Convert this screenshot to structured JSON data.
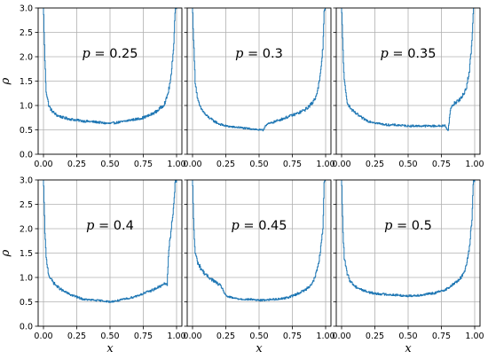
{
  "chart_data": [
    {
      "type": "line",
      "row": 0,
      "col": 0,
      "annotation": {
        "var": "p",
        "eq": " = ",
        "value": "0.25"
      },
      "xlabel": "",
      "ylabel": "ρ",
      "xlim": [
        -0.04,
        1.04
      ],
      "ylim": [
        0,
        3
      ],
      "xticks": [
        "0.00",
        "0.25",
        "0.50",
        "0.75",
        "1.00"
      ],
      "yticks": [
        "0.0",
        "0.5",
        "1.0",
        "1.5",
        "2.0",
        "2.5",
        "3.0"
      ],
      "x": [
        0.0,
        0.01,
        0.02,
        0.04,
        0.06,
        0.08,
        0.1,
        0.15,
        0.2,
        0.25,
        0.3,
        0.35,
        0.4,
        0.45,
        0.5,
        0.55,
        0.6,
        0.65,
        0.7,
        0.75,
        0.8,
        0.85,
        0.9,
        0.92,
        0.94,
        0.96,
        0.98,
        0.99,
        1.0
      ],
      "y": [
        3.0,
        2.0,
        1.3,
        1.0,
        0.9,
        0.85,
        0.8,
        0.75,
        0.72,
        0.7,
        0.68,
        0.67,
        0.66,
        0.64,
        0.63,
        0.65,
        0.67,
        0.7,
        0.72,
        0.75,
        0.8,
        0.88,
        1.0,
        1.1,
        1.3,
        1.6,
        2.3,
        3.0,
        3.0
      ]
    },
    {
      "type": "line",
      "row": 0,
      "col": 1,
      "annotation": {
        "var": "p",
        "eq": " = ",
        "value": "0.3"
      },
      "xlabel": "",
      "ylabel": "",
      "xlim": [
        -0.04,
        1.04
      ],
      "ylim": [
        0,
        3
      ],
      "xticks": [
        "0.00",
        "0.25",
        "0.50",
        "0.75",
        "1.00"
      ],
      "yticks": [],
      "x": [
        0.0,
        0.01,
        0.02,
        0.04,
        0.06,
        0.08,
        0.1,
        0.15,
        0.2,
        0.25,
        0.3,
        0.35,
        0.4,
        0.45,
        0.5,
        0.53,
        0.55,
        0.6,
        0.65,
        0.7,
        0.75,
        0.8,
        0.85,
        0.9,
        0.92,
        0.94,
        0.96,
        0.98,
        0.99,
        1.0
      ],
      "y": [
        3.0,
        2.2,
        1.5,
        1.1,
        0.95,
        0.88,
        0.8,
        0.7,
        0.62,
        0.58,
        0.56,
        0.55,
        0.53,
        0.52,
        0.5,
        0.49,
        0.6,
        0.65,
        0.7,
        0.75,
        0.8,
        0.85,
        0.92,
        1.05,
        1.15,
        1.3,
        1.6,
        2.2,
        3.0,
        3.0
      ]
    },
    {
      "type": "line",
      "row": 0,
      "col": 2,
      "annotation": {
        "var": "p",
        "eq": " = ",
        "value": "0.35"
      },
      "xlabel": "",
      "ylabel": "",
      "xlim": [
        -0.04,
        1.04
      ],
      "ylim": [
        0,
        3
      ],
      "xticks": [
        "0.00",
        "0.25",
        "0.50",
        "0.75",
        "1.00"
      ],
      "yticks": [],
      "x": [
        0.0,
        0.01,
        0.02,
        0.04,
        0.06,
        0.08,
        0.1,
        0.15,
        0.2,
        0.25,
        0.3,
        0.35,
        0.4,
        0.45,
        0.5,
        0.55,
        0.6,
        0.65,
        0.7,
        0.75,
        0.78,
        0.8,
        0.82,
        0.85,
        0.9,
        0.92,
        0.94,
        0.96,
        0.98,
        0.99,
        1.0
      ],
      "y": [
        3.0,
        2.2,
        1.5,
        1.1,
        0.97,
        0.9,
        0.85,
        0.75,
        0.68,
        0.65,
        0.62,
        0.6,
        0.6,
        0.59,
        0.58,
        0.58,
        0.58,
        0.58,
        0.58,
        0.58,
        0.59,
        0.47,
        0.95,
        1.05,
        1.15,
        1.25,
        1.4,
        1.7,
        2.3,
        3.0,
        3.0
      ]
    },
    {
      "type": "line",
      "row": 1,
      "col": 0,
      "annotation": {
        "var": "p",
        "eq": " = ",
        "value": "0.4"
      },
      "xlabel": "x",
      "ylabel": "ρ",
      "xlim": [
        -0.04,
        1.04
      ],
      "ylim": [
        0,
        3
      ],
      "xticks": [
        "0.00",
        "0.25",
        "0.50",
        "0.75",
        "1.00"
      ],
      "yticks": [
        "0.0",
        "0.5",
        "1.0",
        "1.5",
        "2.0",
        "2.5",
        "3.0"
      ],
      "x": [
        0.0,
        0.01,
        0.02,
        0.04,
        0.06,
        0.08,
        0.1,
        0.15,
        0.2,
        0.25,
        0.3,
        0.35,
        0.4,
        0.45,
        0.5,
        0.55,
        0.6,
        0.65,
        0.7,
        0.75,
        0.8,
        0.85,
        0.9,
        0.92,
        0.93,
        0.94,
        0.96,
        0.98,
        0.99,
        1.0
      ],
      "y": [
        3.0,
        2.0,
        1.4,
        1.05,
        0.95,
        0.88,
        0.82,
        0.72,
        0.65,
        0.6,
        0.55,
        0.54,
        0.53,
        0.52,
        0.5,
        0.52,
        0.55,
        0.58,
        0.62,
        0.67,
        0.72,
        0.78,
        0.85,
        0.88,
        0.85,
        1.5,
        2.0,
        2.5,
        3.0,
        3.0
      ]
    },
    {
      "type": "line",
      "row": 1,
      "col": 1,
      "annotation": {
        "var": "p",
        "eq": " = ",
        "value": "0.45"
      },
      "xlabel": "x",
      "ylabel": "",
      "xlim": [
        -0.04,
        1.04
      ],
      "ylim": [
        0,
        3
      ],
      "xticks": [
        "0.00",
        "0.25",
        "0.50",
        "0.75",
        "1.00"
      ],
      "yticks": [],
      "x": [
        0.0,
        0.01,
        0.02,
        0.04,
        0.06,
        0.08,
        0.1,
        0.15,
        0.2,
        0.22,
        0.25,
        0.3,
        0.35,
        0.4,
        0.45,
        0.5,
        0.55,
        0.6,
        0.65,
        0.7,
        0.75,
        0.8,
        0.85,
        0.9,
        0.92,
        0.94,
        0.96,
        0.98,
        0.99,
        1.0
      ],
      "y": [
        3.0,
        2.0,
        1.5,
        1.3,
        1.2,
        1.12,
        1.05,
        0.95,
        0.85,
        0.8,
        0.62,
        0.58,
        0.56,
        0.55,
        0.55,
        0.53,
        0.54,
        0.55,
        0.56,
        0.58,
        0.62,
        0.68,
        0.75,
        0.88,
        1.0,
        1.2,
        1.5,
        2.0,
        3.0,
        3.0
      ]
    },
    {
      "type": "line",
      "row": 1,
      "col": 2,
      "annotation": {
        "var": "p",
        "eq": " = ",
        "value": "0.5"
      },
      "xlabel": "x",
      "ylabel": "",
      "xlim": [
        -0.04,
        1.04
      ],
      "ylim": [
        0,
        3
      ],
      "xticks": [
        "0.00",
        "0.25",
        "0.50",
        "0.75",
        "1.00"
      ],
      "yticks": [],
      "x": [
        0.0,
        0.01,
        0.02,
        0.04,
        0.06,
        0.08,
        0.1,
        0.15,
        0.2,
        0.25,
        0.3,
        0.35,
        0.4,
        0.45,
        0.5,
        0.55,
        0.6,
        0.65,
        0.7,
        0.75,
        0.8,
        0.85,
        0.9,
        0.92,
        0.94,
        0.96,
        0.98,
        0.99,
        1.0
      ],
      "y": [
        3.0,
        2.0,
        1.4,
        1.1,
        0.95,
        0.88,
        0.82,
        0.75,
        0.7,
        0.67,
        0.66,
        0.65,
        0.64,
        0.63,
        0.62,
        0.63,
        0.64,
        0.66,
        0.68,
        0.72,
        0.78,
        0.88,
        1.0,
        1.1,
        1.3,
        1.6,
        2.2,
        3.0,
        3.0
      ]
    }
  ],
  "style": {
    "line_color": "#1f77b4",
    "grid_color": "#b0b0b0",
    "axes_color": "#000000",
    "background": "#ffffff",
    "grid": true,
    "step_style": true
  }
}
